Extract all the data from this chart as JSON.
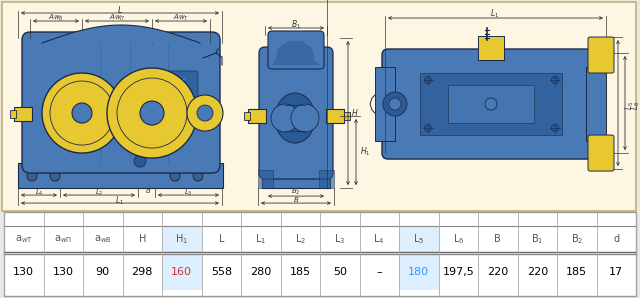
{
  "values": [
    "130",
    "130",
    "90",
    "298",
    "160",
    "558",
    "280",
    "185",
    "50",
    "–",
    "180",
    "197,5",
    "220",
    "220",
    "185",
    "17"
  ],
  "header_labels": [
    "a$_{w\\mathrm{T}}$",
    "a$_{w\\mathrm{\\Pi}}$",
    "a$_{w\\mathrm{B}}$",
    "H",
    "H$_{1}$",
    "L",
    "L$_{1}$",
    "L$_{2}$",
    "L$_{3}$",
    "L$_{4}$",
    "L$_{5}$",
    "L$_{6}$",
    "B",
    "B$_{1}$",
    "B$_{2}$",
    "d"
  ],
  "bg_cream": "#fdf6e3",
  "border_gold": "#c8b06a",
  "blue_main": "#4a7ab5",
  "blue_dark": "#2a5a95",
  "blue_mid": "#5588c0",
  "blue_light": "#6699cc",
  "yellow_part": "#e8c830",
  "yellow_dark": "#c8a820",
  "outline": "#1a2a4a",
  "dim_line": "#444444",
  "dim_text": "#333333",
  "white": "#ffffff",
  "table_border": "#999999",
  "header_color": "#555555",
  "highlight_blue": "#3399ff",
  "highlight_red": "#cc3333"
}
